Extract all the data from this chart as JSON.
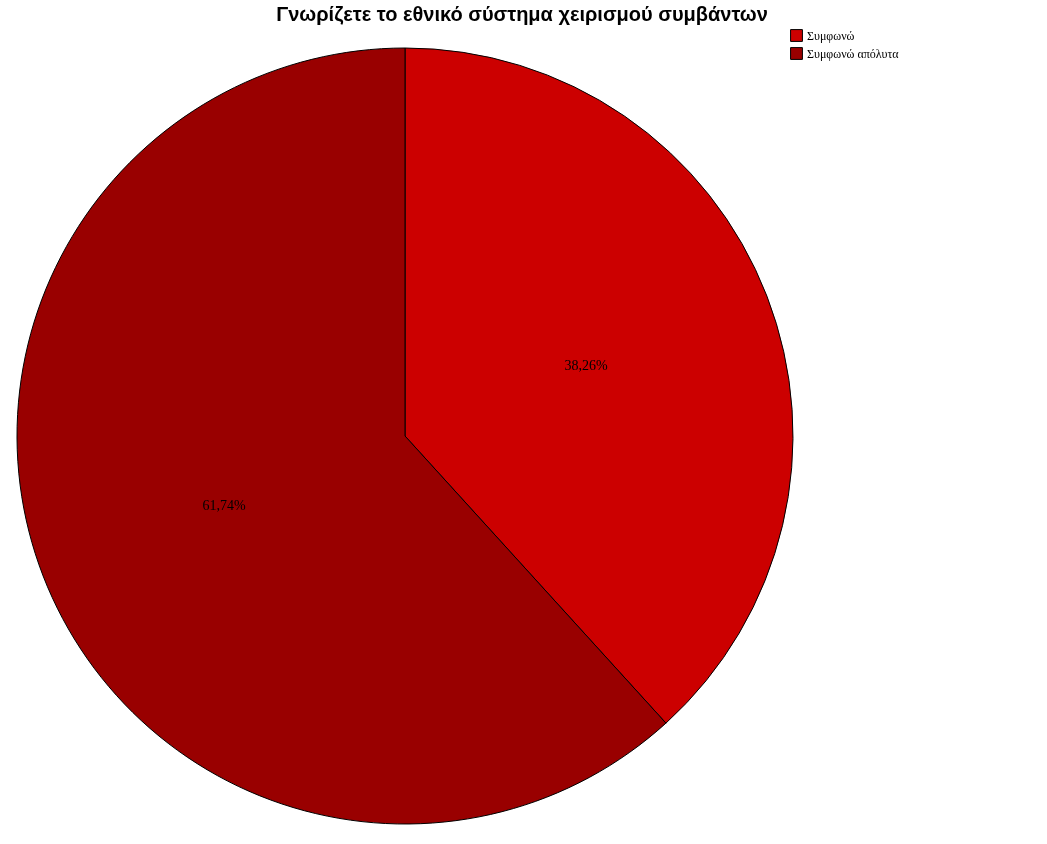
{
  "chart_data": {
    "type": "pie",
    "title": "Γνωρίζετε το εθνικό σύστημα χειρισμού συμβάντων",
    "categories": [
      "Συμφωνώ",
      "Συμφωνώ απόλυτα"
    ],
    "values": [
      38.26,
      61.74
    ],
    "value_labels": [
      "38,26%",
      "61,74%"
    ],
    "colors": [
      "#cc0000",
      "#990000"
    ],
    "legend": "top right"
  }
}
